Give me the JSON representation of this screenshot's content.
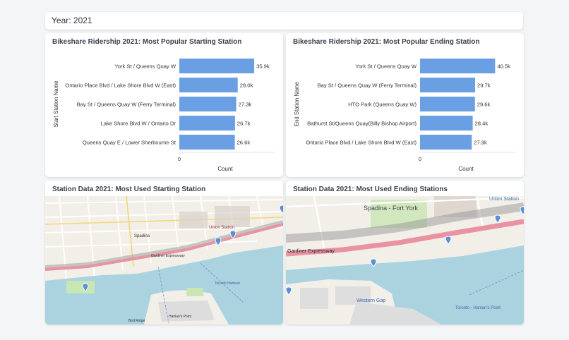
{
  "header": {
    "year_label": "Year: 2021"
  },
  "charts": [
    {
      "title": "Bikeshare Ridership 2021: Most Popular Starting Station",
      "chart_data": {
        "type": "bar",
        "orientation": "horizontal",
        "title": "Bikeshare Ridership 2021: Most Popular Starting Station",
        "xlabel": "Count",
        "ylabel": "Start Station Name",
        "categories": [
          "York St / Queens Quay W",
          "Ontario Place Blvd / Lake Shore Blvd W (East)",
          "Bay St / Queens Quay W (Ferry Terminal)",
          "Lake Shore Blvd W / Ontario Dr",
          "Queens Quay E / Lower Sherbourne St"
        ],
        "values": [
          35900,
          28000,
          27300,
          26700,
          26600
        ],
        "value_labels": [
          "35.9k",
          "28.0k",
          "27.3k",
          "26.7k",
          "26.6k"
        ],
        "x_tick_labels": [
          "0"
        ],
        "xlim": [
          0,
          44000
        ],
        "bar_color": "#6a9fe3",
        "grid": true
      }
    },
    {
      "title": "Bikeshare Ridership 2021: Most Popular Ending Station",
      "chart_data": {
        "type": "bar",
        "orientation": "horizontal",
        "title": "Bikeshare Ridership 2021: Most Popular Ending Station",
        "xlabel": "Count",
        "ylabel": "End Station Name",
        "categories": [
          "York St / Queens Quay W",
          "Bay St / Queens Quay W (Ferry Terminal)",
          "HTO Park (Queens Quay W)",
          "Bathurst St/Queens Quay(Billy Bishop Airport)",
          "Ontario Place Blvd / Lake Shore Blvd W (East)"
        ],
        "values": [
          40500,
          29700,
          29600,
          28400,
          27900
        ],
        "value_labels": [
          "40.5k",
          "29.7k",
          "29.6k",
          "28.4k",
          "27.9k"
        ],
        "x_tick_labels": [
          "0"
        ],
        "xlim": [
          0,
          49500
        ],
        "bar_color": "#6a9fe3",
        "grid": true
      }
    }
  ],
  "maps": [
    {
      "title": "Station Data 2021: Most Used Starting Station",
      "labels": [
        "Spadina",
        "Union Station",
        "Gardiner Expressway",
        "Hanlan's Point",
        "Toronto Harbour",
        "Bird Ridge"
      ],
      "markers": 4
    },
    {
      "title": "Station Data 2021: Most Used Ending Stations",
      "labels": [
        "Spadina - Fort York",
        "Union Station",
        "Gardiner Expressway",
        "Western Gap",
        "Toronto - Hanlan's Point"
      ],
      "markers": 5
    }
  ],
  "colors": {
    "bar": "#6a9fe3",
    "water": "#aad3df",
    "land": "#f2efe9",
    "park": "#c8e6b4",
    "highway": "#e892a2",
    "marker": "#5b8fd6"
  }
}
